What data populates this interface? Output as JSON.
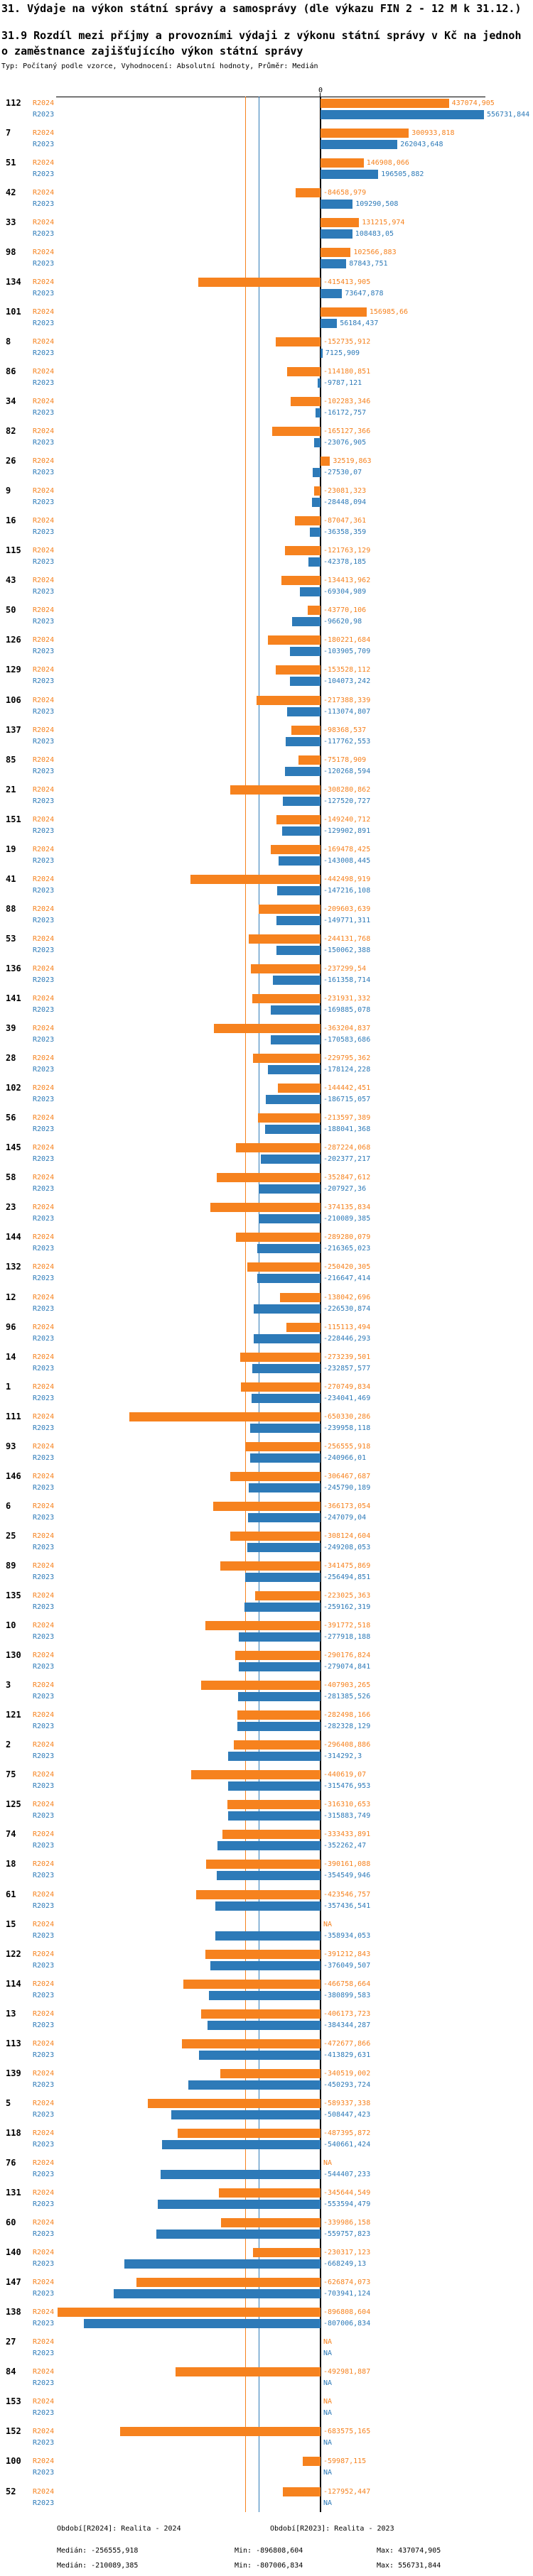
{
  "header": {
    "title": "31. Výdaje na výkon státní správy a samosprávy (dle výkazu FIN 2 - 12 M k 31.12.)",
    "subtitle": "31.9 Rozdíl mezi příjmy a provozními výdaji z výkonu státní správy v Kč na jednoho zaměstnance zajišťujícího výkon státní správy",
    "meta": "Typ: Počítaný podle vzorce, Vyhodnocení: Absolutní hodnoty, Průměr: Medián"
  },
  "axis": {
    "zero_label": "0"
  },
  "colors": {
    "r2024": "#f6821e",
    "r2023": "#2d7ab8",
    "axis": "#000000"
  },
  "legend": {
    "r2024_label": "Období[R2024]: Realita - 2024",
    "r2023_label": "Období[R2023]: Realita - 2023",
    "r2024_median": "Medián: -256555,918",
    "r2024_min": "Min: -896808,604",
    "r2024_max": "Max: 437074,905",
    "r2023_median": "Medián: -210089,385",
    "r2023_min": "Min: -807006,834",
    "r2023_max": "Max: 556731,844"
  },
  "chart_data": {
    "type": "bar",
    "orientation": "horizontal-diverging",
    "legend_position": "bottom",
    "grid": false,
    "xlim": [
      -896808.604,
      556731.844
    ],
    "row_series_labels": {
      "r2024": "R2024",
      "r2023": "R2023"
    },
    "na_text": "NA",
    "categories": [
      "112",
      "7",
      "51",
      "42",
      "33",
      "98",
      "134",
      "101",
      "8",
      "86",
      "34",
      "82",
      "26",
      "9",
      "16",
      "115",
      "43",
      "50",
      "126",
      "129",
      "106",
      "137",
      "85",
      "21",
      "151",
      "19",
      "41",
      "88",
      "53",
      "136",
      "141",
      "39",
      "28",
      "102",
      "56",
      "145",
      "58",
      "23",
      "144",
      "132",
      "12",
      "96",
      "14",
      "1",
      "111",
      "93",
      "146",
      "6",
      "25",
      "89",
      "135",
      "10",
      "130",
      "3",
      "121",
      "2",
      "75",
      "125",
      "74",
      "18",
      "61",
      "15",
      "122",
      "114",
      "13",
      "113",
      "139",
      "5",
      "118",
      "76",
      "131",
      "60",
      "140",
      "147",
      "138",
      "27",
      "84",
      "153",
      "152",
      "100",
      "52"
    ],
    "series": [
      {
        "name": "Období[R2024]: Realita - 2024",
        "key": "R2024",
        "color": "#f6821e",
        "values": [
          "437074,905",
          "300933,818",
          "146908,066",
          "-84658,979",
          "131215,974",
          "102566,883",
          "-415413,905",
          "156985,66",
          "-152735,912",
          "-114180,851",
          "-102283,346",
          "-165127,366",
          "32519,863",
          "-23081,323",
          "-87047,361",
          "-121763,129",
          "-134413,962",
          "-43770,106",
          "-180221,684",
          "-153528,112",
          "-217388,339",
          "-98368,537",
          "-75178,909",
          "-308280,862",
          "-149240,712",
          "-169478,425",
          "-442498,919",
          "-209603,639",
          "-244131,768",
          "-237299,54",
          "-231931,332",
          "-363204,837",
          "-229795,362",
          "-144442,451",
          "-213597,389",
          "-287224,068",
          "-352847,612",
          "-374135,834",
          "-289280,079",
          "-250420,305",
          "-138042,696",
          "-115113,494",
          "-273239,501",
          "-270749,834",
          "-650330,286",
          "-256555,918",
          "-306467,687",
          "-366173,054",
          "-308124,604",
          "-341475,869",
          "-223025,363",
          "-391772,518",
          "-290176,824",
          "-407903,265",
          "-282498,166",
          "-296408,886",
          "-440619,07",
          "-316310,653",
          "-333433,891",
          "-390161,088",
          "-423546,757",
          "NA",
          "-391212,843",
          "-466758,664",
          "-406173,723",
          "-472677,866",
          "-340519,002",
          "-589337,338",
          "-487395,872",
          "NA",
          "-345644,549",
          "-339986,158",
          "-230317,123",
          "-626874,073",
          "-896808,604",
          "NA",
          "-492981,887",
          "NA",
          "-683575,165",
          "-59987,115",
          "-127952,447"
        ]
      },
      {
        "name": "Období[R2023]: Realita - 2023",
        "key": "R2023",
        "color": "#2d7ab8",
        "values": [
          "556731,844",
          "262043,648",
          "196505,882",
          "109290,508",
          "108483,05",
          "87843,751",
          "73647,878",
          "56184,437",
          "7125,909",
          "-9787,121",
          "-16172,757",
          "-23076,905",
          "-27530,07",
          "-28448,094",
          "-36358,359",
          "-42378,185",
          "-69304,989",
          "-96620,98",
          "-103905,709",
          "-104073,242",
          "-113074,807",
          "-117762,553",
          "-120268,594",
          "-127520,727",
          "-129902,891",
          "-143008,445",
          "-147216,108",
          "-149771,311",
          "-150062,388",
          "-161358,714",
          "-169885,078",
          "-170583,686",
          "-178124,228",
          "-186715,057",
          "-188041,368",
          "-202377,217",
          "-207927,36",
          "-210089,385",
          "-216365,023",
          "-216647,414",
          "-226530,874",
          "-228446,293",
          "-232857,577",
          "-234041,469",
          "-239958,118",
          "-240966,01",
          "-245790,189",
          "-247079,04",
          "-249208,053",
          "-256494,851",
          "-259162,319",
          "-277918,188",
          "-279074,841",
          "-281385,526",
          "-282328,129",
          "-314292,3",
          "-315476,953",
          "-315883,749",
          "-352262,47",
          "-354549,946",
          "-357436,541",
          "-358934,053",
          "-376049,507",
          "-380899,583",
          "-384344,287",
          "-413829,631",
          "-450293,724",
          "-508447,423",
          "-540661,424",
          "-544407,233",
          "-553594,479",
          "-559757,823",
          "-668249,13",
          "-703941,124",
          "-807006,834",
          "NA",
          "NA",
          "NA",
          "NA",
          "NA",
          "NA"
        ]
      }
    ],
    "stats": {
      "r2024": {
        "median": "-256555,918",
        "min": "-896808,604",
        "max": "437074,905"
      },
      "r2023": {
        "median": "-210089,385",
        "min": "-807006,834",
        "max": "556731,844"
      }
    }
  }
}
